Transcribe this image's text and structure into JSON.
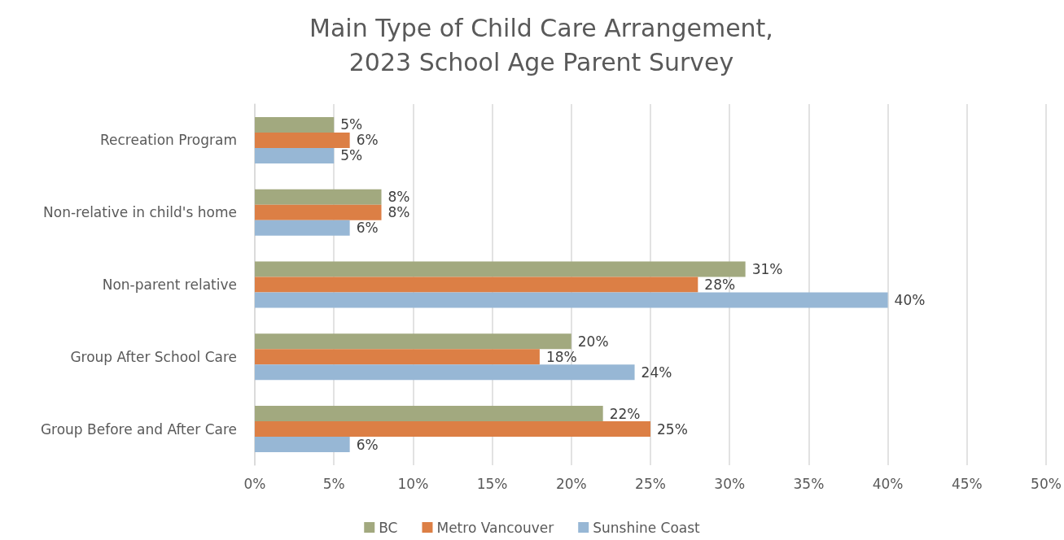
{
  "chart_data": {
    "type": "bar",
    "orientation": "horizontal",
    "title": "Main Type of Child Care Arrangement,\n2023 School Age Parent Survey",
    "categories": [
      "Recreation Program",
      "Non-relative in child's home",
      "Non-parent relative",
      "Group After School Care",
      "Group Before and After Care"
    ],
    "series": [
      {
        "name": "BC",
        "color": "#a2a97f",
        "values": [
          5,
          8,
          31,
          20,
          22
        ],
        "value_labels": [
          "5%",
          "8%",
          "31%",
          "20%",
          "22%"
        ]
      },
      {
        "name": "Metro Vancouver",
        "color": "#dc7f45",
        "values": [
          6,
          8,
          28,
          18,
          25
        ],
        "value_labels": [
          "6%",
          "8%",
          "28%",
          "18%",
          "25%"
        ]
      },
      {
        "name": "Sunshine Coast",
        "color": "#97b7d5",
        "values": [
          5,
          6,
          40,
          24,
          6
        ],
        "value_labels": [
          "5%",
          "6%",
          "40%",
          "24%",
          "6%"
        ]
      }
    ],
    "xlim": [
      0,
      50
    ],
    "xticks": [
      {
        "value": 0,
        "label": "0%"
      },
      {
        "value": 5,
        "label": "5%"
      },
      {
        "value": 10,
        "label": "10%"
      },
      {
        "value": 15,
        "label": "15%"
      },
      {
        "value": 20,
        "label": "20%"
      },
      {
        "value": 25,
        "label": "25%"
      },
      {
        "value": 30,
        "label": "30%"
      },
      {
        "value": 35,
        "label": "35%"
      },
      {
        "value": 40,
        "label": "40%"
      },
      {
        "value": 45,
        "label": "45%"
      },
      {
        "value": 50,
        "label": "50%"
      }
    ],
    "grid": "x",
    "legend": "bottom"
  }
}
